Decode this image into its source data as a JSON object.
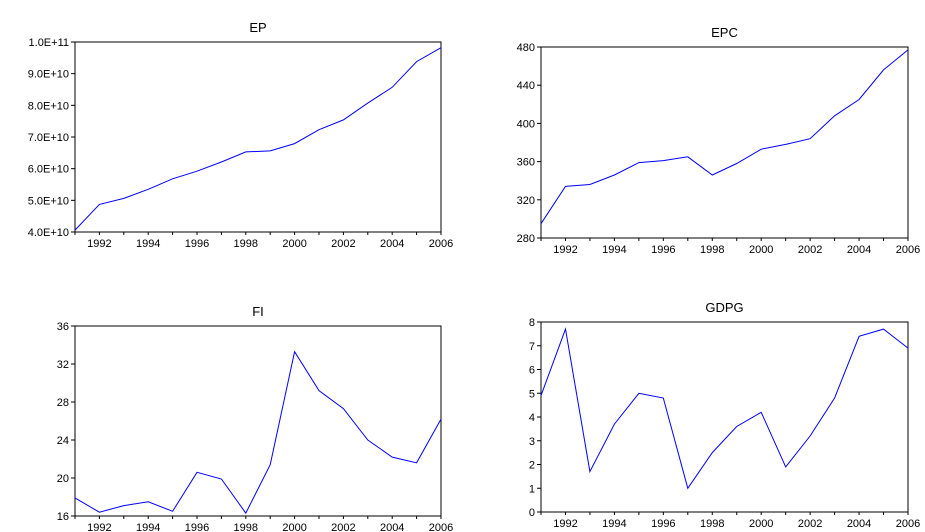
{
  "chart_data": [
    {
      "type": "line",
      "title": "EP",
      "x": [
        1991,
        1992,
        1993,
        1994,
        1995,
        1996,
        1997,
        1998,
        1999,
        2000,
        2001,
        2002,
        2003,
        2004,
        2005,
        2006
      ],
      "xticks": [
        1992,
        1994,
        1996,
        1998,
        2000,
        2002,
        2004,
        2006
      ],
      "xtick_labels": [
        "1992",
        "1994",
        "1996",
        "1998",
        "2000",
        "2002",
        "2004",
        "2006"
      ],
      "xlim": [
        1991,
        2006
      ],
      "series": [
        {
          "values": [
            40600000000,
            48700000000,
            50600000000,
            53500000000,
            56800000000,
            59200000000,
            62100000000,
            65300000000,
            65600000000,
            67900000000,
            72300000000,
            75400000000,
            80700000000,
            85700000000,
            93800000000,
            98200000000
          ],
          "color": "#0000ff"
        }
      ],
      "ylim": [
        40000000000,
        100000000000
      ],
      "yticks": [
        40000000000,
        50000000000,
        60000000000,
        70000000000,
        80000000000,
        90000000000,
        100000000000
      ],
      "ytick_labels": [
        "4.0E+10",
        "5.0E+10",
        "6.0E+10",
        "7.0E+10",
        "8.0E+10",
        "9.0E+10",
        "1.0E+11"
      ]
    },
    {
      "type": "line",
      "title": "EPC",
      "x": [
        1991,
        1992,
        1993,
        1994,
        1995,
        1996,
        1997,
        1998,
        1999,
        2000,
        2001,
        2002,
        2003,
        2004,
        2005,
        2006
      ],
      "xticks": [
        1992,
        1994,
        1996,
        1998,
        2000,
        2002,
        2004,
        2006
      ],
      "xtick_labels": [
        "1992",
        "1994",
        "1996",
        "1998",
        "2000",
        "2002",
        "2004",
        "2006"
      ],
      "xlim": [
        1991,
        2006
      ],
      "series": [
        {
          "values": [
            295,
            334,
            336,
            346,
            359,
            361,
            365,
            346,
            358,
            373,
            378,
            384,
            408,
            425,
            456,
            477
          ],
          "color": "#0000ff"
        }
      ],
      "ylim": [
        280,
        480
      ],
      "yticks": [
        280,
        320,
        360,
        400,
        440,
        480
      ],
      "ytick_labels": [
        "280",
        "320",
        "360",
        "400",
        "440",
        "480"
      ]
    },
    {
      "type": "line",
      "title": "FI",
      "x": [
        1991,
        1992,
        1993,
        1994,
        1995,
        1996,
        1997,
        1998,
        1999,
        2000,
        2001,
        2002,
        2003,
        2004,
        2005,
        2006
      ],
      "xticks": [
        1992,
        1994,
        1996,
        1998,
        2000,
        2002,
        2004,
        2006
      ],
      "xtick_labels": [
        "1992",
        "1994",
        "1996",
        "1998",
        "2000",
        "2002",
        "2004",
        "2006"
      ],
      "xlim": [
        1991,
        2006
      ],
      "series": [
        {
          "values": [
            17.9,
            16.4,
            17.1,
            17.5,
            16.5,
            20.6,
            19.9,
            16.3,
            21.4,
            33.3,
            29.2,
            27.3,
            24.0,
            22.2,
            21.6,
            26.2
          ],
          "color": "#0000ff"
        }
      ],
      "ylim": [
        16,
        36
      ],
      "yticks": [
        16,
        20,
        24,
        28,
        32,
        36
      ],
      "ytick_labels": [
        "16",
        "20",
        "24",
        "28",
        "32",
        "36"
      ]
    },
    {
      "type": "line",
      "title": "GDPG",
      "x": [
        1991,
        1992,
        1993,
        1994,
        1995,
        1996,
        1997,
        1998,
        1999,
        2000,
        2001,
        2002,
        2003,
        2004,
        2005,
        2006
      ],
      "xticks": [
        1992,
        1994,
        1996,
        1998,
        2000,
        2002,
        2004,
        2006
      ],
      "xtick_labels": [
        "1992",
        "1994",
        "1996",
        "1998",
        "2000",
        "2002",
        "2004",
        "2006"
      ],
      "xlim": [
        1991,
        2006
      ],
      "series": [
        {
          "values": [
            4.9,
            7.7,
            1.7,
            3.7,
            5.0,
            4.8,
            1.0,
            2.5,
            3.6,
            4.2,
            1.9,
            3.2,
            4.8,
            7.4,
            7.7,
            6.9
          ],
          "color": "#0000ff"
        }
      ],
      "ylim": [
        0,
        8
      ],
      "yticks": [
        0,
        1,
        2,
        3,
        4,
        5,
        6,
        7,
        8
      ],
      "ytick_labels": [
        "0",
        "1",
        "2",
        "3",
        "4",
        "5",
        "6",
        "7",
        "8"
      ]
    }
  ]
}
